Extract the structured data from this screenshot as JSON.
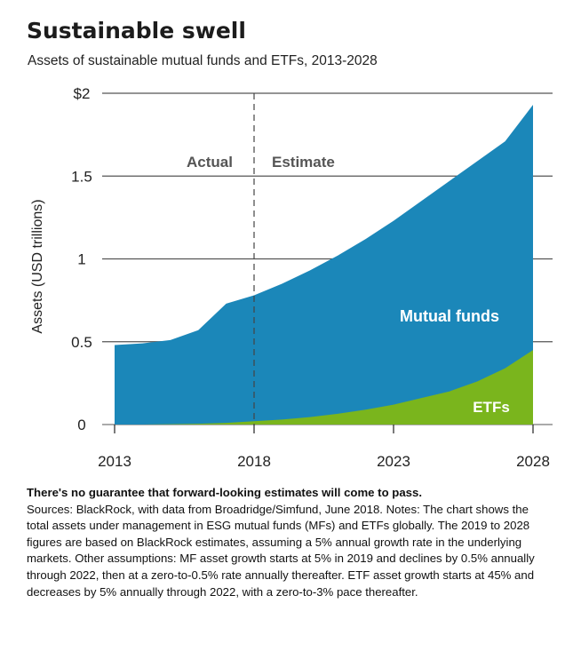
{
  "title": "Sustainable swell",
  "subtitle": "Assets of sustainable mutual funds and ETFs, 2013-2028",
  "notes": {
    "heading": "There's no guarantee that forward-looking estimates will come to pass.",
    "body": "Sources: BlackRock, with data from Broadridge/Simfund, June 2018. Notes: The chart shows the total assets under management in ESG mutual funds (MFs) and ETFs globally. The 2019 to 2028 figures are based on BlackRock estimates, assuming a 5% annual growth rate in the underlying markets. Other assumptions: MF asset growth starts at 5% in 2019 and declines by 0.5% annually through 2022, then at a zero-to-0.5% rate annually thereafter. ETF asset growth starts at 45% and decreases by 5% annually through 2022, with a zero-to-3% pace thereafter."
  },
  "chart_data": {
    "type": "area",
    "stacked": true,
    "ylabel": "Assets (USD trillions)",
    "xlabel": "",
    "x": [
      2013,
      2014,
      2015,
      2016,
      2017,
      2018,
      2019,
      2020,
      2021,
      2022,
      2023,
      2024,
      2025,
      2026,
      2027,
      2028
    ],
    "xlim": [
      2013,
      2028
    ],
    "ylim": [
      0,
      2
    ],
    "x_ticks": [
      "2013",
      "2018",
      "2023",
      "2028"
    ],
    "y_ticks": [
      {
        "value": 0,
        "label": "0"
      },
      {
        "value": 0.5,
        "label": "0.5"
      },
      {
        "value": 1,
        "label": "1"
      },
      {
        "value": 1.5,
        "label": "1.5"
      },
      {
        "value": 2,
        "label": "$2"
      }
    ],
    "grid": "horizontal",
    "series": [
      {
        "name": "ETFs",
        "color": "#7ab51d",
        "values": [
          0.0,
          0.0,
          0.002,
          0.005,
          0.01,
          0.02,
          0.03,
          0.045,
          0.065,
          0.09,
          0.12,
          0.16,
          0.2,
          0.26,
          0.34,
          0.45
        ]
      },
      {
        "name": "Mutual funds",
        "color": "#1b87b9",
        "values": [
          0.48,
          0.49,
          0.508,
          0.565,
          0.72,
          0.76,
          0.82,
          0.885,
          0.955,
          1.03,
          1.11,
          1.19,
          1.27,
          1.33,
          1.37,
          1.48
        ]
      }
    ],
    "divider": {
      "x": 2018,
      "style": "dashed",
      "left_label": "Actual",
      "right_label": "Estimate"
    },
    "series_labels": {
      "mutual_funds": "Mutual funds",
      "etfs": "ETFs"
    }
  }
}
